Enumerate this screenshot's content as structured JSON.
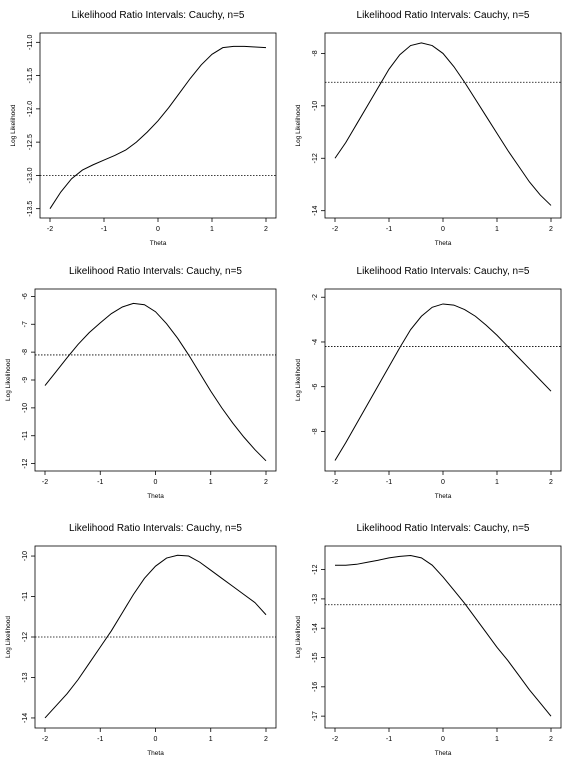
{
  "chart_data": [
    {
      "type": "line",
      "title": "Likelihood Ratio Intervals: Cauchy, n=5",
      "xlabel": "Theta",
      "ylabel": "Log Likelihood",
      "xlim": [
        -2,
        2
      ],
      "ylim": [
        -13.55,
        -10.95
      ],
      "xticks": [
        -2,
        -1,
        0,
        1,
        2
      ],
      "yticks": [
        -11.0,
        -11.5,
        -12.0,
        -12.5,
        -13.0,
        -13.5
      ],
      "ytick_labels": [
        "-11.0",
        "-11.5",
        "-12.0",
        "-12.5",
        "-13.0",
        "-13.5"
      ],
      "cutoff": -13.0,
      "x": [
        -2.0,
        -1.8,
        -1.6,
        -1.4,
        -1.2,
        -1.0,
        -0.8,
        -0.6,
        -0.4,
        -0.2,
        0.0,
        0.2,
        0.4,
        0.6,
        0.8,
        1.0,
        1.2,
        1.4,
        1.6,
        1.8,
        2.0
      ],
      "y": [
        -13.5,
        -13.25,
        -13.05,
        -12.92,
        -12.84,
        -12.77,
        -12.7,
        -12.62,
        -12.5,
        -12.35,
        -12.18,
        -11.98,
        -11.76,
        -11.54,
        -11.34,
        -11.18,
        -11.08,
        -11.06,
        -11.06,
        -11.07,
        -11.08
      ]
    },
    {
      "type": "line",
      "title": "Likelihood Ratio Intervals: Cauchy, n=5",
      "xlabel": "Theta",
      "ylabel": "Log Likelihood",
      "xlim": [
        -2,
        2
      ],
      "ylim": [
        -14.05,
        -7.45
      ],
      "xticks": [
        -2,
        -1,
        0,
        1,
        2
      ],
      "yticks": [
        -8,
        -10,
        -12,
        -14
      ],
      "ytick_labels": [
        "-8",
        "-10",
        "-12",
        "-14"
      ],
      "cutoff": -9.1,
      "x": [
        -2.0,
        -1.8,
        -1.6,
        -1.4,
        -1.2,
        -1.0,
        -0.8,
        -0.6,
        -0.4,
        -0.2,
        0.0,
        0.2,
        0.4,
        0.6,
        0.8,
        1.0,
        1.2,
        1.4,
        1.6,
        1.8,
        2.0
      ],
      "y": [
        -12.0,
        -11.4,
        -10.7,
        -10.0,
        -9.3,
        -8.6,
        -8.05,
        -7.7,
        -7.6,
        -7.7,
        -8.0,
        -8.5,
        -9.1,
        -9.75,
        -10.4,
        -11.05,
        -11.7,
        -12.3,
        -12.9,
        -13.4,
        -13.8
      ]
    },
    {
      "type": "line",
      "title": "Likelihood Ratio Intervals: Cauchy, n=5",
      "xlabel": "Theta",
      "ylabel": "Log Likelihood",
      "xlim": [
        -2,
        2
      ],
      "ylim": [
        -12.05,
        -5.95
      ],
      "xticks": [
        -2,
        -1,
        0,
        1,
        2
      ],
      "yticks": [
        -6,
        -7,
        -8,
        -9,
        -10,
        -11,
        -12
      ],
      "ytick_labels": [
        "-6",
        "-7",
        "-8",
        "-9",
        "-10",
        "-11",
        "-12"
      ],
      "cutoff": -8.1,
      "x": [
        -2.0,
        -1.8,
        -1.6,
        -1.4,
        -1.2,
        -1.0,
        -0.8,
        -0.6,
        -0.4,
        -0.2,
        0.0,
        0.2,
        0.4,
        0.6,
        0.8,
        1.0,
        1.2,
        1.4,
        1.6,
        1.8,
        2.0
      ],
      "y": [
        -9.2,
        -8.7,
        -8.2,
        -7.72,
        -7.3,
        -6.95,
        -6.62,
        -6.38,
        -6.25,
        -6.3,
        -6.55,
        -6.98,
        -7.5,
        -8.1,
        -8.75,
        -9.4,
        -10.0,
        -10.55,
        -11.05,
        -11.5,
        -11.9
      ]
    },
    {
      "type": "line",
      "title": "Likelihood Ratio Intervals: Cauchy, n=5",
      "xlabel": "Theta",
      "ylabel": "Log Likelihood",
      "xlim": [
        -2,
        2
      ],
      "ylim": [
        -9.5,
        -1.9
      ],
      "xticks": [
        -2,
        -1,
        0,
        1,
        2
      ],
      "yticks": [
        -2,
        -4,
        -6,
        -8
      ],
      "ytick_labels": [
        "-2",
        "-4",
        "-6",
        "-8"
      ],
      "cutoff": -4.2,
      "x": [
        -2.0,
        -1.8,
        -1.6,
        -1.4,
        -1.2,
        -1.0,
        -0.8,
        -0.6,
        -0.4,
        -0.2,
        0.0,
        0.2,
        0.4,
        0.6,
        0.8,
        1.0,
        1.2,
        1.4,
        1.6,
        1.8,
        2.0
      ],
      "y": [
        -9.3,
        -8.5,
        -7.65,
        -6.8,
        -5.95,
        -5.1,
        -4.25,
        -3.45,
        -2.85,
        -2.45,
        -2.3,
        -2.35,
        -2.55,
        -2.85,
        -3.25,
        -3.7,
        -4.2,
        -4.7,
        -5.2,
        -5.7,
        -6.2
      ]
    },
    {
      "type": "line",
      "title": "Likelihood Ratio Intervals: Cauchy, n=5",
      "xlabel": "Theta",
      "ylabel": "Log Likelihood",
      "xlim": [
        -2,
        2
      ],
      "ylim": [
        -14.1,
        -9.9
      ],
      "xticks": [
        -2,
        -1,
        0,
        1,
        2
      ],
      "yticks": [
        -10,
        -11,
        -12,
        -13,
        -14
      ],
      "ytick_labels": [
        "-10",
        "-11",
        "-12",
        "-13",
        "-14"
      ],
      "cutoff": -12.0,
      "x": [
        -2.0,
        -1.8,
        -1.6,
        -1.4,
        -1.2,
        -1.0,
        -0.8,
        -0.6,
        -0.4,
        -0.2,
        0.0,
        0.2,
        0.4,
        0.6,
        0.8,
        1.0,
        1.2,
        1.4,
        1.6,
        1.8,
        2.0
      ],
      "y": [
        -14.0,
        -13.7,
        -13.4,
        -13.05,
        -12.65,
        -12.25,
        -11.85,
        -11.4,
        -10.95,
        -10.55,
        -10.25,
        -10.05,
        -9.98,
        -10.0,
        -10.15,
        -10.35,
        -10.55,
        -10.75,
        -10.95,
        -11.15,
        -11.45
      ]
    },
    {
      "type": "line",
      "title": "Likelihood Ratio Intervals: Cauchy, n=5",
      "xlabel": "Theta",
      "ylabel": "Log Likelihood",
      "xlim": [
        -2,
        2
      ],
      "ylim": [
        -17.2,
        -11.4
      ],
      "xticks": [
        -2,
        -1,
        0,
        1,
        2
      ],
      "yticks": [
        -12,
        -13,
        -14,
        -15,
        -16,
        -17
      ],
      "ytick_labels": [
        "-12",
        "-13",
        "-14",
        "-15",
        "-16",
        "-17"
      ],
      "cutoff": -13.2,
      "x": [
        -2.0,
        -1.8,
        -1.6,
        -1.4,
        -1.2,
        -1.0,
        -0.8,
        -0.6,
        -0.4,
        -0.2,
        0.0,
        0.2,
        0.4,
        0.6,
        0.8,
        1.0,
        1.2,
        1.4,
        1.6,
        1.8,
        2.0
      ],
      "y": [
        -11.85,
        -11.85,
        -11.82,
        -11.75,
        -11.68,
        -11.6,
        -11.55,
        -11.52,
        -11.6,
        -11.85,
        -12.25,
        -12.7,
        -13.15,
        -13.65,
        -14.15,
        -14.65,
        -15.1,
        -15.6,
        -16.1,
        -16.55,
        -17.0
      ]
    }
  ]
}
